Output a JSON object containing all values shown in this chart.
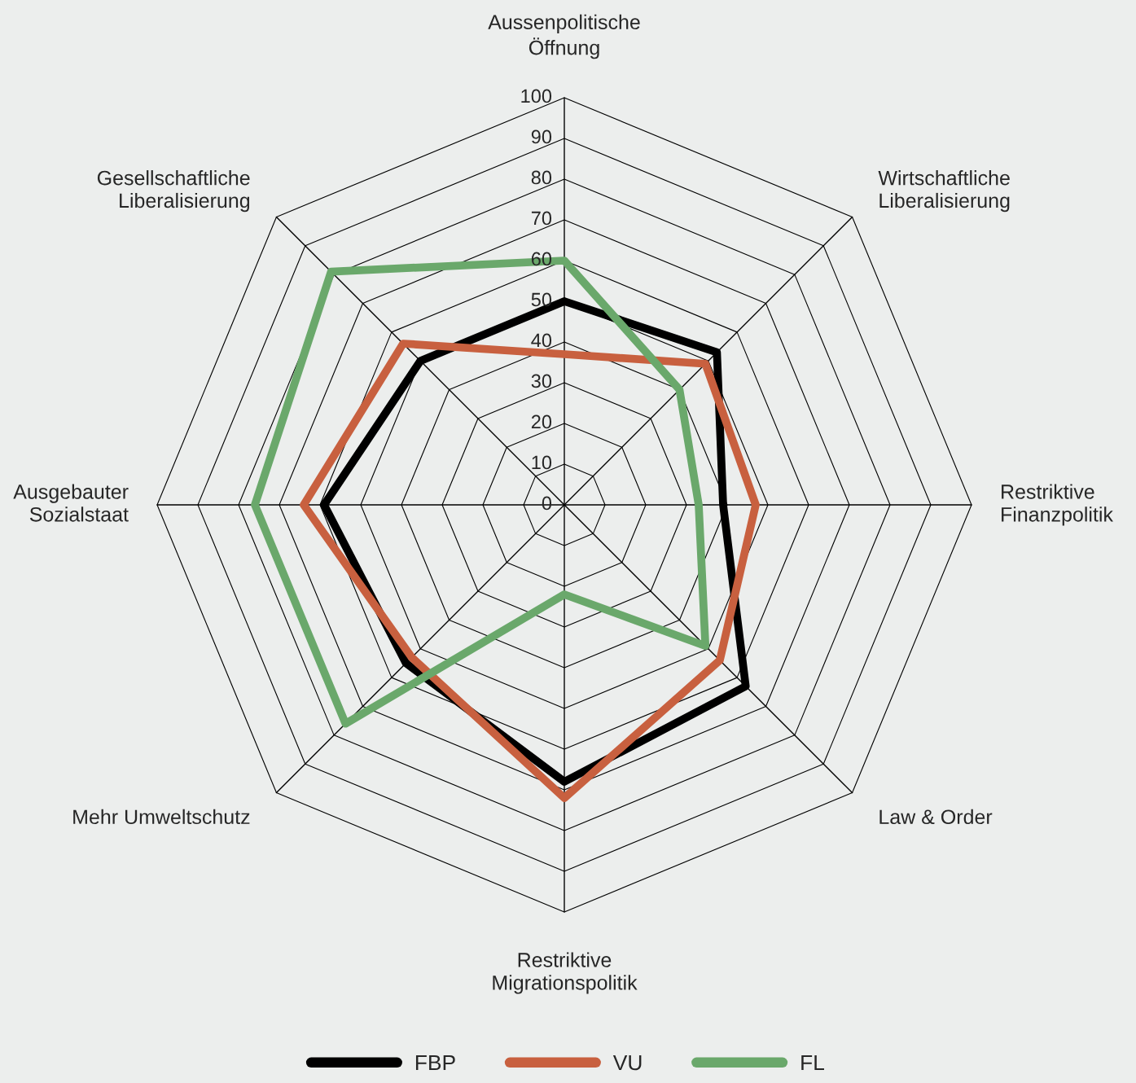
{
  "chart_data": {
    "type": "radar",
    "categories": [
      "Aussenpolitische Öffnung",
      "Wirtschaftliche Liberalisierung",
      "Restriktive Finanzpolitik",
      "Law & Order",
      "Restriktive Migrationspolitik",
      "Mehr Umweltschutz",
      "Ausgebauter Sozialstaat",
      "Gesellschaftliche Liberalisierung"
    ],
    "series": [
      {
        "name": "FBP",
        "color": "#000000",
        "values": [
          50,
          53,
          39,
          63,
          68,
          55,
          59,
          50
        ]
      },
      {
        "name": "VU",
        "color": "#c8603f",
        "values": [
          37,
          49,
          47,
          54,
          72,
          53,
          64,
          56
        ]
      },
      {
        "name": "FL",
        "color": "#6aa86b",
        "values": [
          60,
          40,
          33,
          49,
          22,
          76,
          76,
          81
        ]
      }
    ],
    "ylim": [
      0,
      100
    ],
    "yticks": [
      0,
      10,
      20,
      30,
      40,
      50,
      60,
      70,
      80,
      90,
      100
    ],
    "grid": true,
    "legend": "bottom",
    "marker": "none",
    "line_style": "solid"
  }
}
